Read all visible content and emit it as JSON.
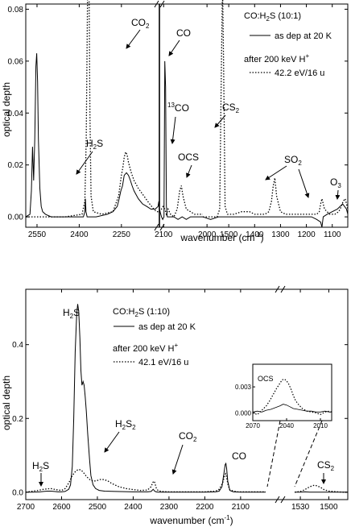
{
  "chart_data": [
    {
      "type": "line",
      "panel": "top",
      "ylabel": "optical depth",
      "xlabel": "wavenumber (cm",
      "xlabel_sup": "-1",
      "xlabel_end": ")",
      "ylim": [
        -0.004,
        0.082
      ],
      "yticks": [
        "0.00",
        "0.02",
        "0.04",
        "0.06",
        "0.08"
      ],
      "segments": [
        {
          "xlim": [
            2590,
            2115
          ],
          "ticks": [
            "2550",
            "2400",
            "2250",
            "2100"
          ],
          "tick_values": [
            2550,
            2400,
            2250,
            2100
          ]
        },
        {
          "xlim": [
            2115,
            2010
          ],
          "ticks": [
            "2000"
          ],
          "tick_values": [
            2000
          ]
        },
        {
          "xlim": [
            1600,
            1040
          ],
          "ticks": [
            "1500",
            "1400",
            "1300",
            "1200",
            "1100"
          ],
          "tick_values": [
            1500,
            1400,
            1300,
            1200,
            1100
          ]
        }
      ],
      "legend": {
        "title": "CO:H",
        "title_sub": "2",
        "title_end": "S (10:1)",
        "entries": [
          "as dep at 20 K",
          "42.2 eV/16 u"
        ],
        "irr_label": "after 200 keV H",
        "irr_sup": "+"
      },
      "annotations": [
        "H2S",
        "CO2",
        "CO",
        "13CO",
        "OCS",
        "CS2",
        "SO2",
        "O3"
      ],
      "series": [
        {
          "name": "as dep at 20 K",
          "style": "solid",
          "x": [
            2590,
            2575,
            2570,
            2566,
            2562,
            2558,
            2554,
            2551,
            2548,
            2545,
            2540,
            2535,
            2530,
            2520,
            2500,
            2480,
            2440,
            2400,
            2385,
            2380,
            2378,
            2376,
            2372,
            2365,
            2340,
            2300,
            2280,
            2265,
            2258,
            2252,
            2246,
            2240,
            2232,
            2225,
            2218,
            2212,
            2205,
            2190,
            2175,
            2160,
            2145,
            2130,
            2120,
            2117,
            2115,
            2110,
            2107,
            2104,
            2102,
            2100,
            2098,
            2096,
            2092,
            2085,
            2080,
            2070,
            2060,
            2050,
            2040,
            2030,
            2020,
            2010,
            1600,
            1570,
            1540,
            1500,
            1470,
            1440,
            1410,
            1380,
            1350,
            1320,
            1300,
            1280,
            1250,
            1220,
            1200,
            1180,
            1160,
            1145,
            1140,
            1135,
            1120,
            1100,
            1080,
            1060,
            1045,
            1040
          ],
          "y": [
            0.0,
            0.001,
            0.01,
            0.027,
            0.014,
            0.03,
            0.058,
            0.063,
            0.052,
            0.03,
            0.011,
            0.004,
            0.002,
            0.001,
            0.0,
            0.0,
            0.0,
            0.0,
            0.0,
            0.002,
            0.007,
            0.002,
            0.0,
            0.0,
            0.0,
            0.001,
            0.002,
            0.004,
            0.007,
            0.01,
            0.012,
            0.016,
            0.017,
            0.016,
            0.014,
            0.012,
            0.01,
            0.007,
            0.005,
            0.004,
            0.003,
            0.003,
            0.004,
            0.006,
            0.003,
            0.0,
            -0.001,
            0.0,
            0.06,
            0.05,
            0.004,
            0.0,
            0.0,
            0.0,
            0.0,
            -0.001,
            0.0,
            -0.001,
            0.0,
            0.0,
            0.0,
            0.0,
            0.0,
            -0.001,
            0.0,
            0.0,
            0.0,
            0.0,
            0.0,
            0.0,
            0.0,
            0.0,
            0.0,
            0.0,
            0.0,
            0.0,
            0.0,
            0.0,
            -0.001,
            -0.002,
            -0.004,
            0.0,
            0.001,
            0.002,
            0.003,
            0.005,
            0.003,
            0.001
          ]
        },
        {
          "name": "42.2 eV/16 u",
          "style": "dotted",
          "x": [
            2590,
            2550,
            2450,
            2390,
            2380,
            2375,
            2370,
            2365,
            2362,
            2358,
            2350,
            2320,
            2280,
            2260,
            2250,
            2245,
            2240,
            2235,
            2230,
            2225,
            2215,
            2205,
            2190,
            2170,
            2150,
            2135,
            2125,
            2118,
            2115,
            2110,
            2106,
            2102,
            2100,
            2098,
            2094,
            2088,
            2080,
            2072,
            2066,
            2062,
            2058,
            2050,
            2040,
            2030,
            2020,
            2010,
            1600,
            1570,
            1545,
            1535,
            1528,
            1524,
            1520,
            1514,
            1505,
            1480,
            1450,
            1420,
            1400,
            1380,
            1360,
            1345,
            1335,
            1328,
            1322,
            1315,
            1300,
            1280,
            1250,
            1220,
            1200,
            1180,
            1160,
            1150,
            1145,
            1140,
            1130,
            1110,
            1090,
            1075,
            1065,
            1058,
            1050,
            1045,
            1040
          ],
          "y": [
            0.0,
            0.0,
            0.0,
            0.001,
            0.006,
            0.03,
            0.09,
            0.09,
            0.04,
            0.008,
            0.002,
            0.001,
            0.002,
            0.008,
            0.016,
            0.019,
            0.023,
            0.025,
            0.024,
            0.021,
            0.017,
            0.014,
            0.011,
            0.008,
            0.005,
            0.003,
            0.002,
            0.002,
            0.002,
            0.003,
            0.004,
            0.003,
            0.002,
            0.001,
            0.003,
            0.001,
            0.0,
            0.003,
            0.01,
            0.012,
            0.008,
            0.003,
            0.002,
            0.001,
            0.001,
            0.001,
            0.0,
            0.0,
            0.0,
            0.003,
            0.06,
            0.09,
            0.06,
            0.004,
            0.001,
            0.001,
            0.002,
            0.002,
            0.001,
            0.001,
            0.001,
            0.002,
            0.006,
            0.012,
            0.015,
            0.008,
            0.002,
            0.001,
            0.001,
            0.001,
            0.001,
            0.001,
            0.001,
            0.002,
            0.005,
            0.007,
            0.003,
            0.001,
            0.001,
            0.002,
            0.004,
            0.006,
            0.007,
            0.005,
            0.003
          ]
        }
      ]
    },
    {
      "type": "line",
      "panel": "bottom",
      "ylabel": "optical depth",
      "xlabel": "wavenumber (cm",
      "xlabel_sup": "-1",
      "xlabel_end": ")",
      "ylim": [
        -0.02,
        0.55
      ],
      "yticks": [
        "0.0",
        "0.2",
        "0.4"
      ],
      "segments": [
        {
          "xlim": [
            2700,
            2030
          ],
          "ticks": [
            "2700",
            "2600",
            "2500",
            "2400",
            "2300",
            "2200",
            "2100"
          ],
          "tick_values": [
            2700,
            2600,
            2500,
            2400,
            2300,
            2200,
            2100
          ]
        },
        {
          "xlim": [
            1536,
            1480
          ],
          "ticks": [
            "1530",
            "1500"
          ],
          "tick_values": [
            1530,
            1500
          ]
        }
      ],
      "legend": {
        "title": "CO:H",
        "title_sub": "2",
        "title_end": "S (1:10)",
        "entries": [
          "as dep at 20 K",
          "42.1 eV/16 u"
        ],
        "irr_label": "after 200 keV H",
        "irr_sup": "+"
      },
      "annotations": [
        "H2S",
        "H2S",
        "H2S2",
        "CO2",
        "CO",
        "CS2"
      ],
      "series": [
        {
          "name": "as dep at 20 K",
          "style": "solid",
          "x": [
            2700,
            2680,
            2660,
            2650,
            2640,
            2630,
            2620,
            2610,
            2600,
            2590,
            2580,
            2575,
            2570,
            2566,
            2562,
            2558,
            2555,
            2552,
            2549,
            2546,
            2543,
            2540,
            2537,
            2534,
            2531,
            2527,
            2522,
            2518,
            2512,
            2505,
            2495,
            2480,
            2450,
            2400,
            2360,
            2350,
            2344,
            2340,
            2336,
            2330,
            2300,
            2250,
            2200,
            2170,
            2160,
            2152,
            2146,
            2143,
            2141,
            2139,
            2136,
            2130,
            2120,
            2100,
            2070,
            2050,
            2030,
            1536,
            1530,
            1525,
            1520,
            1515,
            1510,
            1505,
            1500,
            1495,
            1490,
            1485,
            1480
          ],
          "y": [
            0.0,
            0.0,
            0.001,
            0.002,
            0.003,
            0.003,
            0.002,
            0.001,
            0.001,
            0.002,
            0.008,
            0.02,
            0.07,
            0.2,
            0.38,
            0.48,
            0.51,
            0.49,
            0.42,
            0.33,
            0.29,
            0.3,
            0.29,
            0.26,
            0.22,
            0.16,
            0.09,
            0.045,
            0.02,
            0.01,
            0.005,
            0.003,
            0.002,
            0.001,
            0.001,
            0.002,
            0.008,
            0.003,
            0.001,
            0.0,
            0.0,
            0.0,
            0.0,
            0.001,
            0.003,
            0.015,
            0.055,
            0.075,
            0.078,
            0.065,
            0.03,
            0.005,
            0.001,
            0.0,
            0.0,
            0.0,
            0.0,
            0.0,
            0.0,
            0.001,
            0.0,
            0.0,
            0.0,
            0.0,
            0.0,
            0.0,
            0.0,
            0.0,
            0.0
          ]
        },
        {
          "name": "42.1 eV/16 u",
          "style": "dotted",
          "x": [
            2700,
            2680,
            2660,
            2650,
            2640,
            2630,
            2620,
            2610,
            2600,
            2590,
            2580,
            2570,
            2560,
            2552,
            2545,
            2538,
            2530,
            2520,
            2510,
            2500,
            2490,
            2480,
            2470,
            2460,
            2440,
            2420,
            2400,
            2380,
            2360,
            2350,
            2345,
            2341,
            2338,
            2335,
            2330,
            2320,
            2300,
            2250,
            2200,
            2170,
            2160,
            2150,
            2145,
            2142,
            2139,
            2135,
            2130,
            2110,
            2080,
            2050,
            2030,
            1536,
            1530,
            1526,
            1522,
            1518,
            1515,
            1512,
            1508,
            1505,
            1500,
            1495,
            1490,
            1485,
            1480
          ],
          "y": [
            0.0,
            0.003,
            0.006,
            0.008,
            0.009,
            0.01,
            0.008,
            0.006,
            0.005,
            0.01,
            0.025,
            0.045,
            0.058,
            0.062,
            0.06,
            0.052,
            0.042,
            0.033,
            0.03,
            0.032,
            0.035,
            0.034,
            0.03,
            0.024,
            0.015,
            0.01,
            0.007,
            0.005,
            0.006,
            0.015,
            0.027,
            0.03,
            0.02,
            0.01,
            0.004,
            0.002,
            0.001,
            0.001,
            0.001,
            0.003,
            0.008,
            0.025,
            0.045,
            0.05,
            0.04,
            0.02,
            0.006,
            0.001,
            0.001,
            0.001,
            0.001,
            0.0,
            0.002,
            0.006,
            0.012,
            0.017,
            0.019,
            0.017,
            0.012,
            0.007,
            0.003,
            0.002,
            0.001,
            0.0,
            0.0
          ]
        }
      ],
      "inset": {
        "title": "OCS",
        "xlim": [
          2070,
          2000
        ],
        "ylim": [
          -0.0009,
          0.0045
        ],
        "xticks": [
          "2070",
          "2040",
          "2010"
        ],
        "xtick_values": [
          2070,
          2040,
          2010
        ],
        "yticks": [
          "0.000",
          "0.003"
        ],
        "ytick_values": [
          0.0,
          0.003
        ],
        "series": [
          {
            "name": "as dep at 20 K",
            "style": "solid",
            "x": [
              2070,
              2066,
              2062,
              2058,
              2054,
              2050,
              2046,
              2043,
              2040,
              2037,
              2034,
              2030,
              2026,
              2022,
              2018,
              2014,
              2010,
              2006,
              2002,
              2000
            ],
            "y": [
              0.0001,
              0.0002,
              0.0001,
              0.0003,
              0.0004,
              0.0006,
              0.0008,
              0.001,
              0.0009,
              0.0007,
              0.0005,
              0.0004,
              0.0003,
              0.0002,
              0.0002,
              0.0001,
              0.0001,
              0.0002,
              0.0001,
              0.0001
            ]
          },
          {
            "name": "42.1 eV/16 u",
            "style": "dotted",
            "x": [
              2070,
              2066,
              2062,
              2058,
              2055,
              2052,
              2049,
              2046,
              2044,
              2042,
              2040,
              2038,
              2036,
              2034,
              2032,
              2029,
              2026,
              2022,
              2018,
              2014,
              2010,
              2006,
              2002,
              2000
            ],
            "y": [
              0.0,
              -0.0002,
              0.0003,
              0.0008,
              0.0014,
              0.0021,
              0.0028,
              0.0034,
              0.0038,
              0.0039,
              0.0037,
              0.0033,
              0.0027,
              0.002,
              0.0014,
              0.0009,
              0.0005,
              0.0002,
              0.0001,
              0.0,
              -0.0002,
              0.0001,
              0.0002,
              0.0001
            ]
          }
        ]
      }
    }
  ]
}
